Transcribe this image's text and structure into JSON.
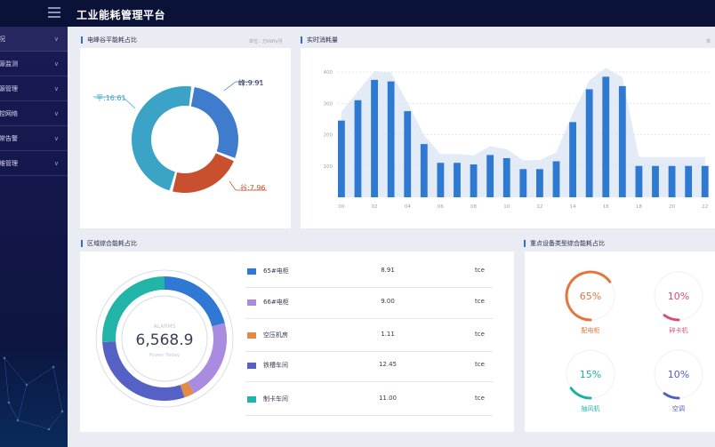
{
  "app": {
    "title": "工业能耗管理平台"
  },
  "sidebar": {
    "items": [
      {
        "label": "况"
      },
      {
        "label": "源监测"
      },
      {
        "label": "源管理"
      },
      {
        "label": "控网络"
      },
      {
        "label": "常告警"
      },
      {
        "label": "维管理"
      }
    ]
  },
  "panels": {
    "peak_valley": {
      "title": "电峰谷平能耗占比",
      "unit": "单位：万kWh/月"
    },
    "realtime": {
      "title": "实时消耗量",
      "unit": "单"
    },
    "region": {
      "title": "区域综合能耗占比"
    },
    "equipment": {
      "title": "重点设备类型综合能耗占比"
    }
  },
  "donut_peak_valley": {
    "labels": [
      "峰:9.91",
      "谷:7.96",
      "平:16.61"
    ],
    "values": [
      9.91,
      7.96,
      16.61
    ],
    "colors": [
      "#3f7ccd",
      "#c8502f",
      "#3aa3c6"
    ]
  },
  "chart_data": {
    "type": "bar",
    "x": [
      "00",
      "01",
      "02",
      "03",
      "04",
      "05",
      "06",
      "07",
      "08",
      "09",
      "10",
      "11",
      "12",
      "13",
      "14",
      "15",
      "16",
      "17",
      "18",
      "19",
      "20",
      "21",
      "22"
    ],
    "values": [
      245,
      310,
      375,
      370,
      275,
      170,
      110,
      110,
      105,
      135,
      125,
      90,
      90,
      115,
      240,
      345,
      385,
      355,
      100,
      100,
      100,
      100,
      100
    ],
    "x_tick_labels": [
      "00",
      "02",
      "04",
      "06",
      "08",
      "10",
      "12",
      "14",
      "16",
      "18",
      "20",
      "22"
    ],
    "y_tick_labels": [
      "100",
      "200",
      "300",
      "400"
    ],
    "ylim": [
      0,
      420
    ],
    "bar_color": "#2e79d2",
    "area_color": "#dbe6f4",
    "grid": true
  },
  "region": {
    "center_value": "6,568.9",
    "center_top": "ALARMS",
    "center_bottom": "Power Today",
    "legend": [
      {
        "name": "65#电柜",
        "value": "8.91",
        "unit": "tce",
        "color": "#2f78d3"
      },
      {
        "name": "66#电柜",
        "value": "9.00",
        "unit": "tce",
        "color": "#a98be0"
      },
      {
        "name": "空压机房",
        "value": "1.11",
        "unit": "tce",
        "color": "#e48a49"
      },
      {
        "name": "铁槽车间",
        "value": "12.45",
        "unit": "tce",
        "color": "#5561c4"
      },
      {
        "name": "制卡车间",
        "value": "11.00",
        "unit": "tce",
        "color": "#22b5a7"
      }
    ],
    "ring_values": [
      8.91,
      9.0,
      1.11,
      12.45,
      11.0
    ]
  },
  "equipment": {
    "gauges": [
      {
        "label": "配电柜",
        "percent": "65%",
        "value": 0.65,
        "color": "#e2763c"
      },
      {
        "label": "碎卡机",
        "percent": "10%",
        "value": 0.1,
        "color": "#d44b7a"
      },
      {
        "label": "抽风机",
        "percent": "15%",
        "value": 0.15,
        "color": "#18b3a3"
      },
      {
        "label": "空调",
        "percent": "10%",
        "value": 0.1,
        "color": "#4f5ec0"
      }
    ]
  }
}
